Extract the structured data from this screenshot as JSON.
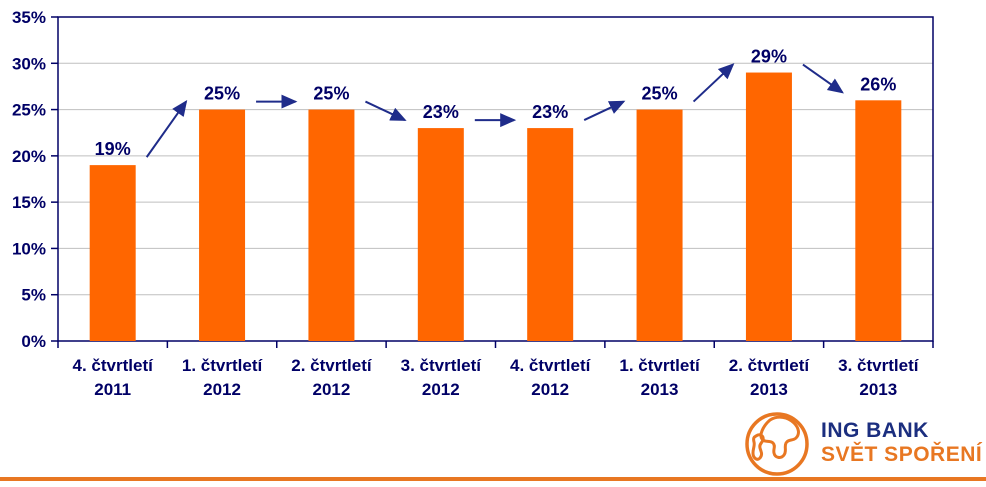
{
  "chart_data": {
    "type": "bar",
    "title": "",
    "categories": [
      [
        "4. čtvrtletí",
        "2011"
      ],
      [
        "1. čtvrtletí",
        "2012"
      ],
      [
        "2. čtvrtletí",
        "2012"
      ],
      [
        "3. čtvrtletí",
        "2012"
      ],
      [
        "4. čtvrtletí",
        "2012"
      ],
      [
        "1. čtvrtletí",
        "2013"
      ],
      [
        "2. čtvrtletí",
        "2013"
      ],
      [
        "3. čtvrtletí",
        "2013"
      ]
    ],
    "values": [
      19,
      25,
      25,
      23,
      23,
      25,
      29,
      26
    ],
    "data_labels": [
      "19%",
      "25%",
      "25%",
      "23%",
      "23%",
      "25%",
      "29%",
      "26%"
    ],
    "ylim": [
      0,
      35
    ],
    "ytick_step": 5,
    "ytick_labels": [
      "0%",
      "5%",
      "10%",
      "15%",
      "20%",
      "25%",
      "30%",
      "35%"
    ],
    "grid": true,
    "legend": "none",
    "trend_arrows": true,
    "colors": {
      "bar": "#FF6600",
      "axis": "#000066",
      "text": "#000066",
      "grid": "#BFBFBF",
      "arrow": "#1F2C8A",
      "plot_background": "#FFFFFF"
    }
  },
  "logo": {
    "line1": "ING BANK",
    "line2": "SVĚT SPOŘENÍ",
    "colors": {
      "line1": "#1B2E7F",
      "line2": "#E87722",
      "globe": "#E87722"
    }
  },
  "footer_rule": {
    "color": "#E87722"
  }
}
